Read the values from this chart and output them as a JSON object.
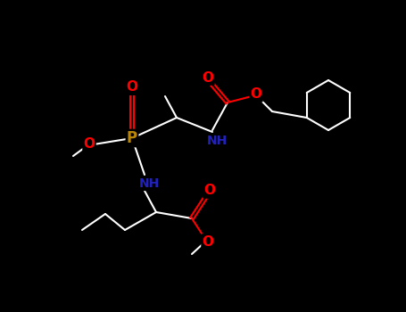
{
  "background_color": "#000000",
  "bond_color": "#ffffff",
  "atom_colors": {
    "O": "#ff0000",
    "N": "#2222bb",
    "P": "#b8860b",
    "C": "#ffffff",
    "H": "#ffffff"
  },
  "figsize": [
    4.55,
    3.5
  ],
  "dpi": 100
}
